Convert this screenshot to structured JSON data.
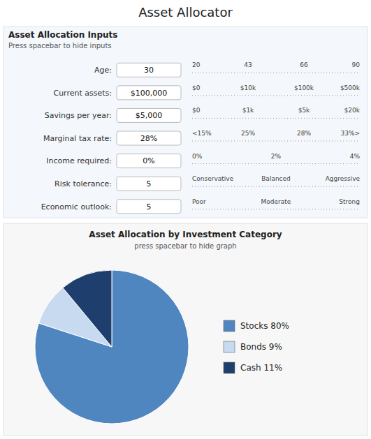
{
  "chart_data": {
    "type": "pie",
    "title": "Asset Allocation by Investment Category",
    "subtitle": "press spacebar to hide graph",
    "categories": [
      "Stocks 80%",
      "Bonds 9%",
      "Cash 11%"
    ],
    "values": [
      80,
      9,
      11
    ],
    "colors": [
      "#4f86c0",
      "#c8daf0",
      "#1e3f6e"
    ],
    "legend": "right",
    "annotations": [
      "Asset Allocator",
      "Asset Allocation Inputs",
      "Press spacebar to hide inputs"
    ],
    "inputs": [
      {
        "label": "Age:",
        "value": "30",
        "ticks": [
          "20",
          "43",
          "66",
          "90"
        ]
      },
      {
        "label": "Current assets:",
        "value": "$100,000",
        "ticks": [
          "$0",
          "$10k",
          "$100k",
          "$500k"
        ]
      },
      {
        "label": "Savings per year:",
        "value": "$5,000",
        "ticks": [
          "$0",
          "$1k",
          "$5k",
          "$20k"
        ]
      },
      {
        "label": "Marginal tax rate:",
        "value": "28%",
        "ticks": [
          "<15%",
          "25%",
          "28%",
          "33%>"
        ]
      },
      {
        "label": "Income required:",
        "value": "0%",
        "ticks": [
          "0%",
          "2%",
          "4%"
        ]
      },
      {
        "label": "Risk tolerance:",
        "value": "5",
        "ticks": [
          "Conservative",
          "Balanced",
          "Aggressive"
        ]
      },
      {
        "label": "Economic outlook:",
        "value": "5",
        "ticks": [
          "Poor",
          "Moderate",
          "Strong"
        ]
      }
    ]
  }
}
